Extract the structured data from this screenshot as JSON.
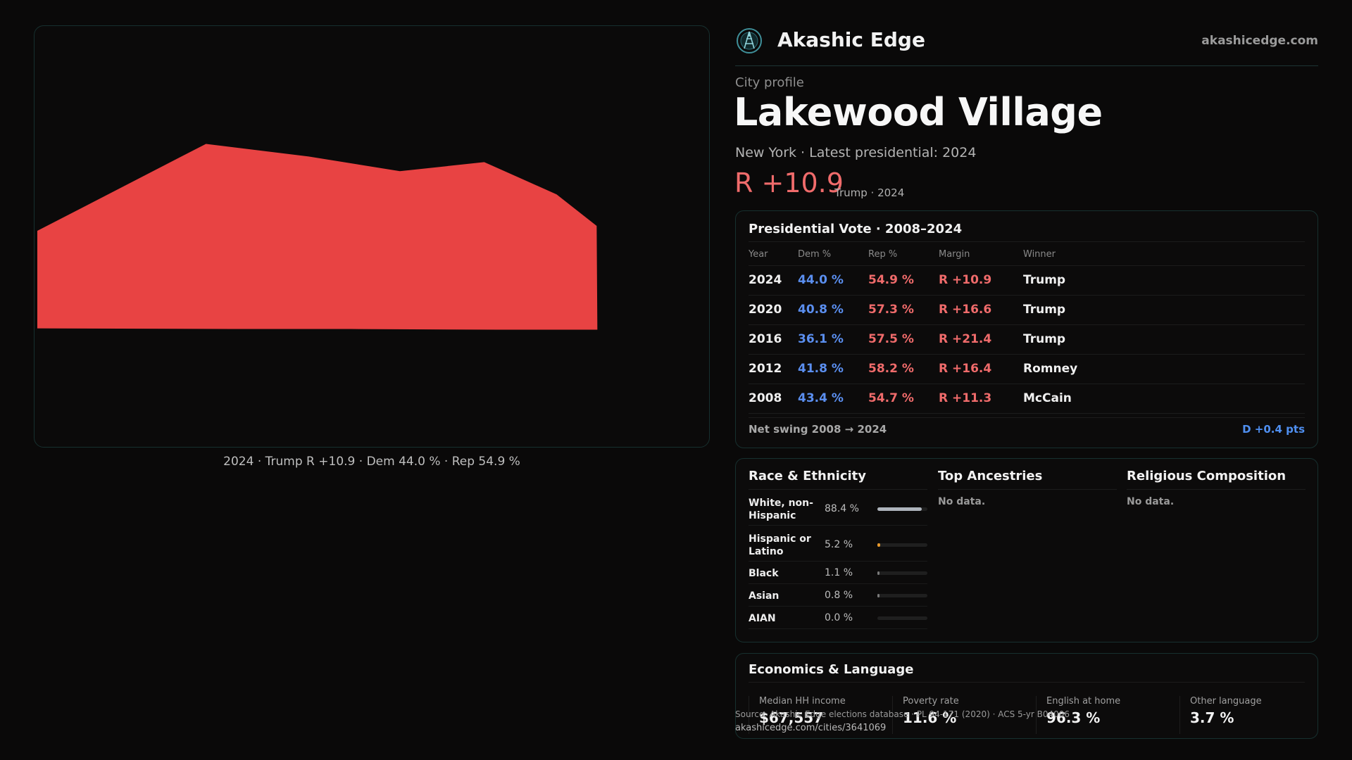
{
  "map": {
    "fill_color": "#e84343",
    "caption": "2024 · Trump R +10.9 · Dem 44.0 % · Rep 54.9 %"
  },
  "header": {
    "brand": "Akashic Edge",
    "url": "akashicedge.com",
    "logo_icon": "compass-globe-icon"
  },
  "profile": {
    "kind": "City profile",
    "city": "Lakewood Village",
    "meta": "New York · Latest presidential: 2024",
    "margin": "R +10.9",
    "margin_sub": "Trump · 2024"
  },
  "votes": {
    "title": "Presidential Vote · 2008–2024",
    "columns": [
      "Year",
      "Dem %",
      "Rep %",
      "Margin",
      "Winner"
    ],
    "rows": [
      {
        "year": "2024",
        "dem": "44.0 %",
        "rep": "54.9 %",
        "margin": "R +10.9",
        "winner": "Trump"
      },
      {
        "year": "2020",
        "dem": "40.8 %",
        "rep": "57.3 %",
        "margin": "R +16.6",
        "winner": "Trump"
      },
      {
        "year": "2016",
        "dem": "36.1 %",
        "rep": "57.5 %",
        "margin": "R +21.4",
        "winner": "Trump"
      },
      {
        "year": "2012",
        "dem": "41.8 %",
        "rep": "58.2 %",
        "margin": "R +16.4",
        "winner": "Romney"
      },
      {
        "year": "2008",
        "dem": "43.4 %",
        "rep": "54.7 %",
        "margin": "R +11.3",
        "winner": "McCain"
      }
    ],
    "swing_label": "Net swing 2008 → 2024",
    "swing_value": "D +0.4 pts",
    "colors": {
      "dem": "#5b8ff0",
      "rep": "#f06b6b"
    }
  },
  "demographics": {
    "race_title": "Race & Ethnicity",
    "race": [
      {
        "label": "White, non-Hispanic",
        "value": "88.4 %",
        "fraction": 0.884,
        "color": "#aeb4bc"
      },
      {
        "label": "Hispanic or Latino",
        "value": "5.2 %",
        "fraction": 0.052,
        "color": "#e99a2c"
      },
      {
        "label": "Black",
        "value": "1.1 %",
        "fraction": 0.011,
        "color": "#7a7a7a"
      },
      {
        "label": "Asian",
        "value": "0.8 %",
        "fraction": 0.008,
        "color": "#7a7a7a"
      },
      {
        "label": "AIAN",
        "value": "0.0 %",
        "fraction": 0.0,
        "color": "#7a7a7a"
      }
    ],
    "ancestry_title": "Top Ancestries",
    "ancestry_empty": "No data.",
    "religion_title": "Religious Composition",
    "religion_empty": "No data."
  },
  "economics": {
    "title": "Economics & Language",
    "stats": [
      {
        "label": "Median HH income",
        "value": "$67,557"
      },
      {
        "label": "Poverty rate",
        "value": "11.6 %"
      },
      {
        "label": "English at home",
        "value": "96.3 %"
      },
      {
        "label": "Other language",
        "value": "3.7 %"
      }
    ]
  },
  "footer": {
    "source": "Source: Akashic Edge elections database · PL 94-171 (2020) · ACS 5-yr B04006",
    "url": "akashicedge.com/cities/3641069"
  }
}
